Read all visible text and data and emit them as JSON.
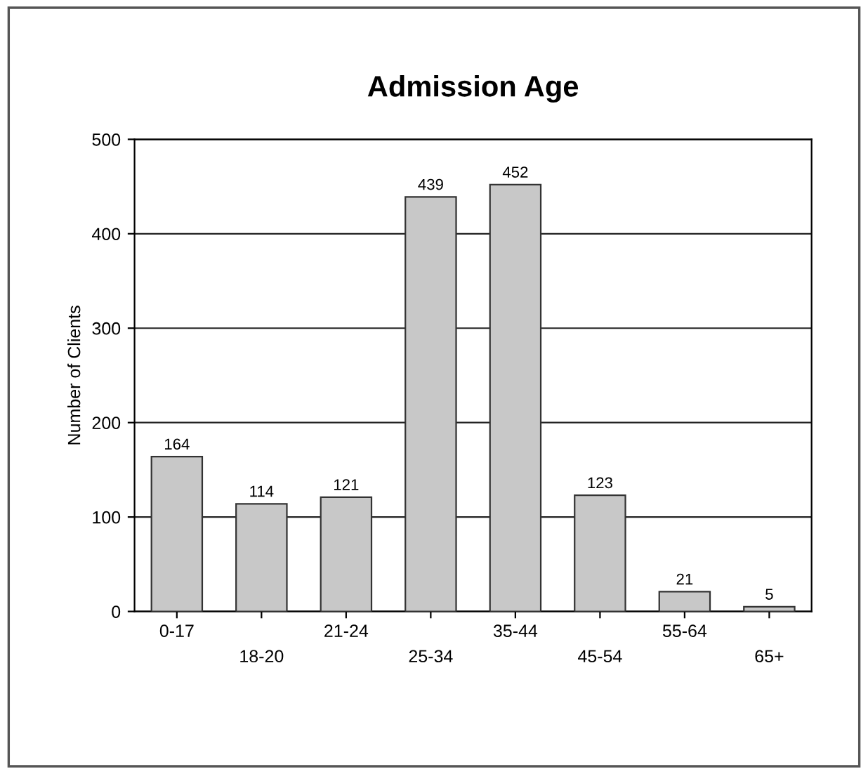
{
  "chart_data": {
    "type": "bar",
    "title": "Admission Age",
    "ylabel": "Number of Clients",
    "categories": [
      "0-17",
      "18-20",
      "21-24",
      "25-34",
      "35-44",
      "45-54",
      "55-64",
      "65+"
    ],
    "values": [
      164,
      114,
      121,
      439,
      452,
      123,
      21,
      5
    ],
    "color": "#c8c8c8",
    "ylim": [
      0,
      500
    ],
    "yticks": [
      0,
      100,
      200,
      300,
      400,
      500
    ],
    "grid": "y",
    "data_labels": true
  }
}
